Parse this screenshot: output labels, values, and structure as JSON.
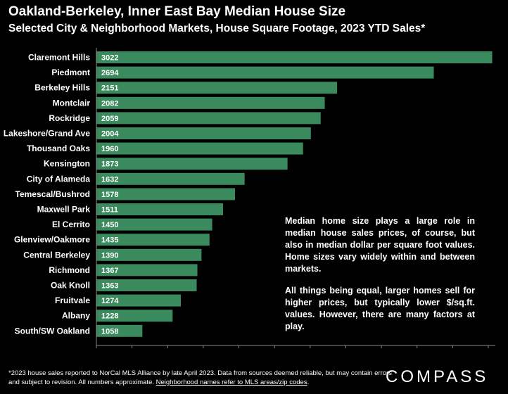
{
  "chart_data": {
    "type": "bar",
    "orientation": "horizontal",
    "title": "Oakland-Berkeley, Inner East Bay Median House Size",
    "subtitle": "Selected City & Neighborhood Markets, House Square Footage, 2023 YTD Sales*",
    "categories": [
      "Claremont Hills",
      "Piedmont",
      "Berkeley Hills",
      "Montclair",
      "Rockridge",
      "Lakeshore/Grand Ave",
      "Thousand Oaks",
      "Kensington",
      "City of Alameda",
      "Temescal/Bushrod",
      "Maxwell Park",
      "El Cerrito",
      "Glenview/Oakmore",
      "Central Berkeley",
      "Richmond",
      "Oak Knoll",
      "Fruitvale",
      "Albany",
      "South/SW Oakland"
    ],
    "values": [
      3022,
      2694,
      2151,
      2082,
      2059,
      2004,
      1960,
      1873,
      1632,
      1578,
      1511,
      1450,
      1435,
      1390,
      1367,
      1363,
      1274,
      1228,
      1058
    ],
    "xlim": [
      800,
      3000
    ],
    "xticks": [
      800,
      1000,
      1200,
      1400,
      1600,
      1800,
      2000,
      2200,
      2400,
      2600,
      2800,
      3000
    ],
    "bar_color": "#3a8a5e",
    "grid": false,
    "legend": "none"
  },
  "annotation": {
    "paragraph1": "Median home size plays a large role in median house sales prices, of course, but also in median dollar per square foot values. Home sizes vary widely within and between markets.",
    "paragraph2": "All things being equal, larger homes sell for higher prices, but typically lower $/sq.ft. values. However, there are many factors at play."
  },
  "footnote": {
    "text": "*2023 house sales reported to NorCal MLS Alliance by late April 2023. Data from sources deemed reliable, but may contain errors and subject to revision. All numbers approximate. ",
    "link_text": "Neighborhood names refer to MLS areas/zip codes",
    "end": "."
  },
  "logo": "COMPASS"
}
